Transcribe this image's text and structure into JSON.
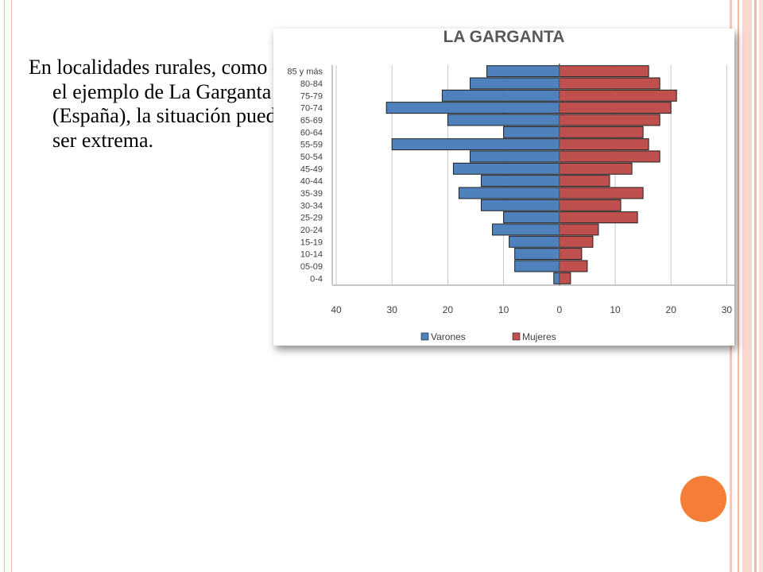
{
  "slide": {
    "text": "En localidades rurales, como es el ejemplo de La Garganta (España), la situación puede ser extrema."
  },
  "colors": {
    "varones": "#4f81bd",
    "mujeres": "#c0504d",
    "accent": "#f47e35",
    "frame": "#f0b7a6"
  },
  "chart_data": {
    "type": "bar",
    "orientation": "horizontal-population-pyramid",
    "title": "LA GARGANTA",
    "categories": [
      "85 y más",
      "80-84",
      "75-79",
      "70-74",
      "65-69",
      "60-64",
      "55-59",
      "50-54",
      "45-49",
      "40-44",
      "35-39",
      "30-34",
      "25-29",
      "20-24",
      "15-19",
      "10-14",
      "05-09",
      "0-4"
    ],
    "series": [
      {
        "name": "Varones",
        "values": [
          13,
          16,
          21,
          31,
          20,
          10,
          30,
          16,
          19,
          14,
          18,
          14,
          10,
          12,
          9,
          8,
          8,
          1
        ]
      },
      {
        "name": "Mujeres",
        "values": [
          16,
          18,
          21,
          20,
          18,
          15,
          16,
          18,
          13,
          9,
          15,
          11,
          14,
          7,
          6,
          4,
          5,
          2
        ]
      }
    ],
    "xlim": [
      -40,
      30
    ],
    "xticks": [
      "40",
      "30",
      "20",
      "10",
      "0",
      "10",
      "20",
      "30"
    ],
    "grid": true,
    "legend_position": "bottom"
  }
}
